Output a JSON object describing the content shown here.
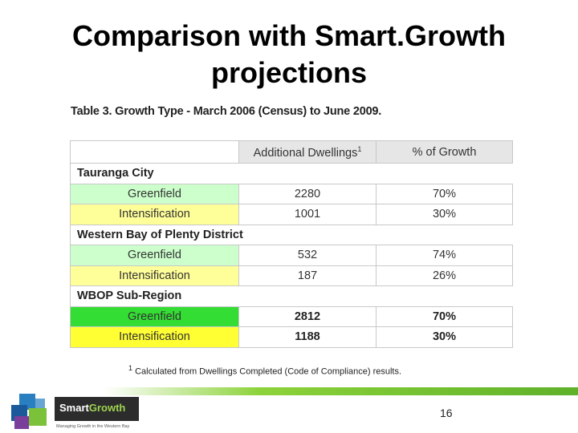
{
  "title": {
    "line1": "Comparison with Smart.Growth",
    "line2": "projections"
  },
  "table": {
    "caption": "Table 3.  Growth Type - March 2006 (Census) to June 2009.",
    "headers": [
      "",
      "Additional Dwellings",
      "% of Growth"
    ],
    "header_superscript": "1",
    "groups": [
      {
        "name": "Tauranga City",
        "rows": [
          {
            "label": "Greenfield",
            "dwellings": "2280",
            "percent": "70%"
          },
          {
            "label": "Intensification",
            "dwellings": "1001",
            "percent": "30%"
          }
        ]
      },
      {
        "name": "Western Bay of Plenty District",
        "rows": [
          {
            "label": "Greenfield",
            "dwellings": "532",
            "percent": "74%"
          },
          {
            "label": "Intensification",
            "dwellings": "187",
            "percent": "26%"
          }
        ]
      },
      {
        "name": "WBOP Sub-Region",
        "rows": [
          {
            "label": "Greenfield",
            "dwellings": "2812",
            "percent": "70%"
          },
          {
            "label": "Intensification",
            "dwellings": "1188",
            "percent": "30%"
          }
        ]
      }
    ],
    "footnote_marker": "1",
    "footnote": "Calculated from Dwellings Completed (Code of Compliance) results."
  },
  "logo": {
    "name_part1": "Smart",
    "name_part2": "Growth",
    "tagline": "Managing Growth in the Western Bay"
  },
  "page_number": "16",
  "colors": {
    "greenfield_light": "#ccffcc",
    "intensification_light": "#ffff99",
    "greenfield_bright": "#33dd33",
    "intensification_bright": "#ffff33",
    "band_green": "#5fb12a"
  }
}
